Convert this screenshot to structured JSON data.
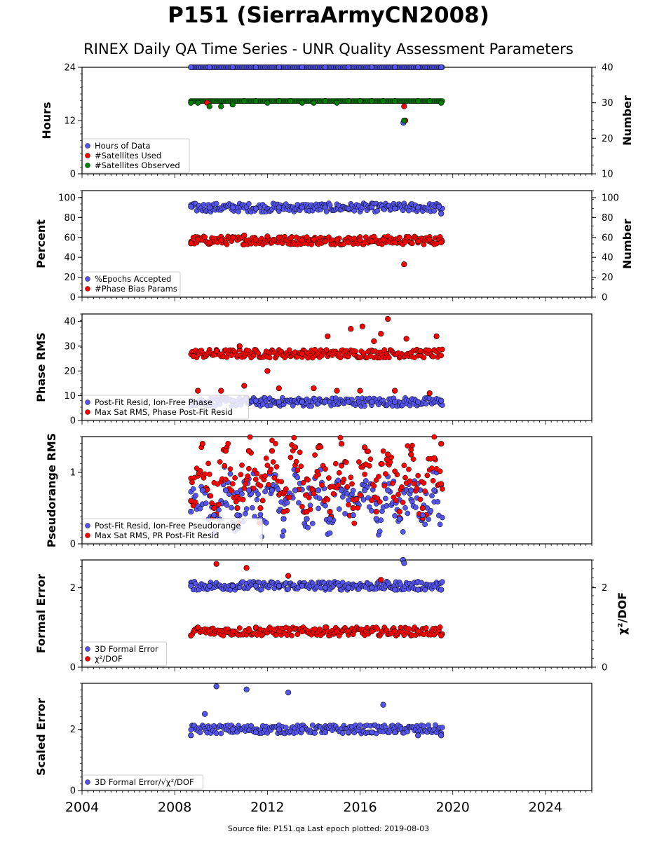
{
  "header": {
    "title": "P151 (SierraArmyCN2008)",
    "subtitle": "RINEX Daily QA Time Series - UNR Quality Assessment Parameters"
  },
  "footer": {
    "source": "Source file: P151.qa Last epoch plotted: 2019-08-03"
  },
  "colors": {
    "blue": "#5555ee",
    "red": "#ff0000",
    "green": "#008000",
    "edge": "#000000"
  },
  "chart_data": [
    {
      "type": "scatter",
      "panel": "hours",
      "ylabel": "Hours",
      "ylim": [
        0,
        24
      ],
      "yticks": [
        "0",
        "12",
        "24"
      ],
      "y2label": "Number",
      "y2lim": [
        10,
        40
      ],
      "y2ticks": [
        "10",
        "20",
        "30",
        "40"
      ],
      "xlim": [
        2004,
        2026
      ],
      "legend": "lower-left",
      "series": [
        {
          "name": "Hours of Data",
          "color": "blue",
          "axis": "left",
          "x": [
            2008.7,
            2009.5,
            2010.5,
            2011.5,
            2012.5,
            2013.5,
            2014.5,
            2015.5,
            2016.5,
            2017.5,
            2017.87,
            2018.5,
            2019.5
          ],
          "y": [
            24,
            24,
            24,
            24,
            24,
            24,
            24,
            24,
            24,
            24,
            11.5,
            24,
            24
          ]
        },
        {
          "name": "#Satellites Used",
          "color": "red",
          "axis": "right",
          "x": [
            2009.4,
            2017.9,
            2017.95
          ],
          "y": [
            30,
            29,
            25
          ]
        },
        {
          "name": "#Satellites Observed",
          "color": "green",
          "axis": "right",
          "x": [
            2008.7,
            2009.0,
            2009.5,
            2010.0,
            2010.5,
            2011.0,
            2011.5,
            2012.0,
            2012.5,
            2013.0,
            2013.5,
            2014.0,
            2014.5,
            2015.0,
            2015.5,
            2016.0,
            2016.5,
            2017.0,
            2017.5,
            2017.9,
            2018.5,
            2019.0,
            2019.5
          ],
          "y": [
            30,
            30,
            29,
            29,
            29.5,
            30.5,
            30.5,
            30,
            30.5,
            30.5,
            30,
            30,
            30.5,
            30,
            30.5,
            30.5,
            30.5,
            30.5,
            30.5,
            25,
            30.5,
            30.5,
            30
          ]
        }
      ]
    },
    {
      "type": "scatter",
      "panel": "percent",
      "ylabel": "Percent",
      "ylim": [
        0,
        107
      ],
      "yticks": [
        "0",
        "20",
        "40",
        "60",
        "80",
        "100"
      ],
      "y2label": "Number",
      "y2lim": [
        0,
        107
      ],
      "y2ticks": [
        "0",
        "20",
        "40",
        "60",
        "80",
        "100"
      ],
      "xlim": [
        2004,
        2026
      ],
      "legend": "lower-left",
      "series": [
        {
          "name": "%Epochs Accepted",
          "color": "blue",
          "axis": "left",
          "x": [
            2008.7,
            2009.5,
            2010.5,
            2011.5,
            2012.5,
            2013.5,
            2014.5,
            2015.5,
            2016.5,
            2017.5,
            2018.5,
            2019.4,
            2019.5
          ],
          "y": [
            91,
            90,
            90,
            89,
            90,
            90,
            90,
            89,
            90,
            89,
            90,
            91,
            84
          ]
        },
        {
          "name": "#Phase Bias Params",
          "color": "red",
          "axis": "right",
          "x": [
            2008.7,
            2009.0,
            2009.5,
            2010.0,
            2010.5,
            2011.0,
            2011.5,
            2012.0,
            2012.5,
            2013.0,
            2013.5,
            2014.0,
            2014.5,
            2015.0,
            2015.5,
            2016.0,
            2016.5,
            2017.0,
            2017.5,
            2017.9,
            2018.5,
            2019.0,
            2019.5
          ],
          "y": [
            54,
            58,
            55,
            57,
            60,
            62,
            58,
            61,
            60,
            59,
            57,
            58,
            56,
            58,
            55,
            57,
            56,
            58,
            55,
            33,
            56,
            58,
            55
          ]
        }
      ]
    },
    {
      "type": "scatter",
      "panel": "phase-rms",
      "ylabel": "Phase RMS",
      "ylim": [
        0,
        43
      ],
      "yticks": [
        "0",
        "10",
        "20",
        "30",
        "40"
      ],
      "xlim": [
        2004,
        2026
      ],
      "legend": "lower-left",
      "series": [
        {
          "name": "Post-Fit Resid, Ion-Free Phase",
          "color": "blue",
          "x": [
            2008.7,
            2009.5,
            2010.5,
            2011.5,
            2012.5,
            2013.5,
            2014.5,
            2015.5,
            2016.5,
            2017.5,
            2018.5,
            2019.5
          ],
          "y": [
            8,
            7.5,
            8,
            8,
            7.5,
            7.5,
            7.5,
            7.5,
            7.5,
            7.5,
            7.5,
            8
          ]
        },
        {
          "name": "Max Sat RMS, Phase Post-Fit Resid",
          "color": "red",
          "x": [
            2008.8,
            2009.8,
            2010.8,
            2012.0,
            2013.5,
            2014.6,
            2015.6,
            2016.1,
            2016.6,
            2016.9,
            2017.2,
            2018.0,
            2018.6,
            2019.3,
            2009.0,
            2010.0,
            2011.0,
            2012.5,
            2014.0,
            2015.0,
            2016.0,
            2017.5,
            2019.0
          ],
          "y": [
            26,
            28,
            30,
            20,
            27,
            34,
            37,
            38,
            32,
            35,
            41,
            33,
            28,
            34,
            12,
            12,
            14,
            13,
            13,
            12,
            12,
            12,
            11
          ]
        }
      ]
    },
    {
      "type": "scatter",
      "panel": "pseudorange-rms",
      "ylabel": "Pseudorange RMS",
      "ylim": [
        0,
        1.5
      ],
      "yticks": [
        "0",
        "1"
      ],
      "xlim": [
        2004,
        2026
      ],
      "legend": "lower-left",
      "series": [
        {
          "name": "Post-Fit Resid, Ion-Free Pseudorange",
          "color": "blue",
          "x": [
            2008.7,
            2009.2,
            2009.7,
            2010.2,
            2010.7,
            2011.2,
            2011.7,
            2012.2,
            2012.7,
            2013.2,
            2013.7,
            2014.2,
            2014.7,
            2015.2,
            2015.7,
            2016.2,
            2016.7,
            2017.2,
            2017.7,
            2018.2,
            2018.7,
            2019.2
          ],
          "y": [
            0.45,
            0.75,
            0.4,
            0.75,
            0.4,
            0.75,
            0.35,
            0.75,
            0.35,
            0.75,
            0.35,
            0.75,
            0.35,
            0.75,
            0.4,
            0.75,
            0.35,
            0.75,
            0.35,
            0.75,
            0.4,
            0.75
          ]
        },
        {
          "name": "Max Sat RMS, PR Post-Fit Resid",
          "color": "red",
          "x": [
            2008.7,
            2009.2,
            2009.7,
            2010.2,
            2010.7,
            2011.2,
            2011.7,
            2012.2,
            2012.7,
            2013.2,
            2013.7,
            2014.2,
            2014.7,
            2015.2,
            2015.7,
            2016.2,
            2016.7,
            2017.2,
            2017.7,
            2018.2,
            2018.7,
            2019.2,
            2019.5
          ],
          "y": [
            0.6,
            1.4,
            0.5,
            1.3,
            0.5,
            1.3,
            0.5,
            1.3,
            0.45,
            1.35,
            0.45,
            1.35,
            0.45,
            1.4,
            0.5,
            1.35,
            0.45,
            1.25,
            0.45,
            1.25,
            0.5,
            1.2,
            1.4
          ]
        }
      ]
    },
    {
      "type": "scatter",
      "panel": "formal-error",
      "ylabel": "Formal Error",
      "ylim": [
        0,
        2.7
      ],
      "yticks": [
        "0",
        "2"
      ],
      "y2label": "χ²/DOF",
      "y2lim": [
        0,
        2.7
      ],
      "y2ticks": [
        "0",
        "2"
      ],
      "xlim": [
        2004,
        2026
      ],
      "legend": "lower-left",
      "series": [
        {
          "name": "3D Formal Error",
          "color": "blue",
          "axis": "left",
          "x": [
            2008.7,
            2009.5,
            2010.5,
            2011.5,
            2012.5,
            2013.5,
            2014.5,
            2015.5,
            2016.5,
            2017.5,
            2017.85,
            2017.9,
            2018.5,
            2019.5
          ],
          "y": [
            2.05,
            2.05,
            2.05,
            2.05,
            2.05,
            2.05,
            2.0,
            2.0,
            2.0,
            1.95,
            2.7,
            2.62,
            1.95,
            1.95
          ]
        },
        {
          "name": "χ²/DOF",
          "color": "red",
          "axis": "right",
          "x": [
            2008.7,
            2009.0,
            2009.5,
            2009.8,
            2010.5,
            2011.1,
            2011.5,
            2012.5,
            2012.9,
            2013.5,
            2014.5,
            2015.0,
            2015.5,
            2016.5,
            2016.9,
            2017.5,
            2018.5,
            2019.5
          ],
          "y": [
            0.8,
            1.0,
            0.9,
            2.6,
            0.9,
            2.5,
            1.0,
            0.9,
            2.3,
            0.9,
            1.0,
            0.9,
            0.9,
            0.9,
            2.2,
            0.9,
            0.9,
            0.8
          ]
        }
      ]
    },
    {
      "type": "scatter",
      "panel": "scaled-error",
      "ylabel": "Scaled Error",
      "ylim": [
        0,
        3.5
      ],
      "yticks": [
        "0",
        "2"
      ],
      "xlim": [
        2004,
        2026
      ],
      "xticks": [
        "2004",
        "2008",
        "2012",
        "2016",
        "2020",
        "2024"
      ],
      "legend": "lower-left",
      "series": [
        {
          "name": "3D Formal Error/√χ²/DOF",
          "color": "blue",
          "x": [
            2008.7,
            2009.3,
            2009.8,
            2010.5,
            2011.1,
            2011.5,
            2012.5,
            2012.9,
            2013.5,
            2014.5,
            2015.5,
            2016.5,
            2017.0,
            2017.5,
            2018.5,
            2019.5
          ],
          "y": [
            1.8,
            2.5,
            3.4,
            2.0,
            3.3,
            1.9,
            2.0,
            3.2,
            2.0,
            1.9,
            1.9,
            1.9,
            2.8,
            1.9,
            1.8,
            1.8
          ]
        }
      ]
    }
  ]
}
